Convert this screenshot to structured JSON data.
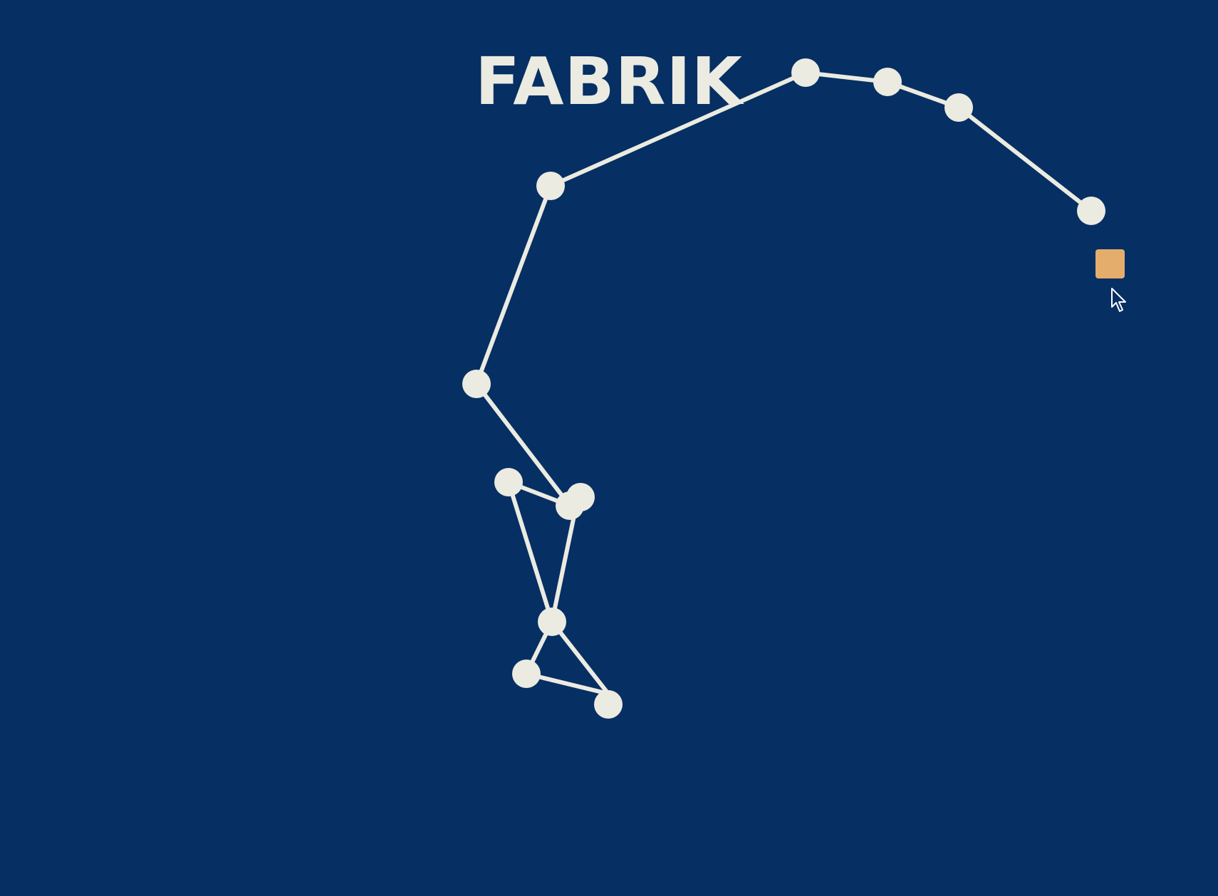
{
  "app": {
    "title": "FABRIK"
  },
  "colors": {
    "background": "#062f63",
    "chain": "#ebebe1",
    "target": "#e4ad6c"
  },
  "icons": {
    "cursor": "mouse-pointer-icon",
    "target": "target-handle-icon"
  }
}
